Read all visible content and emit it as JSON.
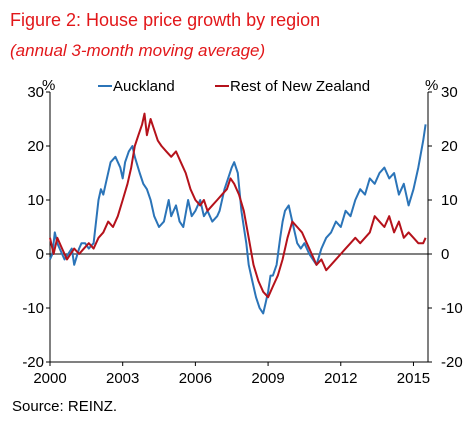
{
  "title": "Figure 2: House price growth by region",
  "subtitle": "(annual 3-month moving average)",
  "source": "Source: REINZ.",
  "chart_data": {
    "type": "line",
    "xlim": [
      2000,
      2015.6
    ],
    "ylim": [
      -20,
      30
    ],
    "x_ticks": [
      "2000",
      "2003",
      "2006",
      "2009",
      "2012",
      "2015"
    ],
    "y_ticks": [
      "30",
      "20",
      "10",
      "0",
      "-10",
      "-20"
    ],
    "y_unit_left": "%",
    "y_unit_right": "%",
    "legend_position": "top",
    "grid": false,
    "series": [
      {
        "name": "Auckland",
        "color": "#2b74b8",
        "x": [
          2000.0,
          2000.1,
          2000.2,
          2000.3,
          2000.4,
          2000.5,
          2000.6,
          2000.75,
          2000.9,
          2001.0,
          2001.2,
          2001.3,
          2001.45,
          2001.6,
          2001.8,
          2002.0,
          2002.1,
          2002.2,
          2002.3,
          2002.5,
          2002.7,
          2002.9,
          2003.0,
          2003.1,
          2003.25,
          2003.4,
          2003.5,
          2003.7,
          2003.85,
          2004.0,
          2004.15,
          2004.3,
          2004.5,
          2004.7,
          2004.9,
          2005.0,
          2005.2,
          2005.35,
          2005.5,
          2005.7,
          2005.85,
          2006.0,
          2006.2,
          2006.35,
          2006.5,
          2006.7,
          2006.9,
          2007.0,
          2007.2,
          2007.35,
          2007.5,
          2007.6,
          2007.75,
          2007.9,
          2008.0,
          2008.1,
          2008.2,
          2008.35,
          2008.5,
          2008.65,
          2008.8,
          2008.9,
          2009.0,
          2009.1,
          2009.2,
          2009.35,
          2009.5,
          2009.6,
          2009.7,
          2009.85,
          2010.0,
          2010.2,
          2010.35,
          2010.5,
          2010.7,
          2010.85,
          2011.0,
          2011.2,
          2011.4,
          2011.6,
          2011.8,
          2012.0,
          2012.2,
          2012.4,
          2012.6,
          2012.8,
          2013.0,
          2013.2,
          2013.4,
          2013.6,
          2013.8,
          2014.0,
          2014.2,
          2014.4,
          2014.6,
          2014.8,
          2015.0,
          2015.2,
          2015.4,
          2015.5
        ],
        "y": [
          -1,
          0,
          4,
          2,
          1,
          0,
          -1,
          0,
          1,
          -2,
          1,
          2,
          2,
          1,
          2,
          10,
          12,
          11,
          13,
          17,
          18,
          16,
          14,
          17,
          19,
          20,
          18,
          15,
          13,
          12,
          10,
          7,
          5,
          6,
          10,
          7,
          9,
          6,
          5,
          10,
          7,
          8,
          10,
          7,
          8,
          6,
          7,
          8,
          12,
          14,
          16,
          17,
          15,
          8,
          5,
          2,
          -2,
          -5,
          -8,
          -10,
          -11,
          -9,
          -7,
          -4,
          -4,
          -2,
          3,
          6,
          8,
          9,
          6,
          2,
          1,
          2,
          0,
          -1,
          -2,
          1,
          3,
          4,
          6,
          5,
          8,
          7,
          10,
          12,
          11,
          14,
          13,
          15,
          16,
          14,
          15,
          11,
          13,
          9,
          12,
          16,
          21,
          24
        ]
      },
      {
        "name": "Rest of New Zealand",
        "color": "#b5121b",
        "x": [
          2000.0,
          2000.15,
          2000.3,
          2000.5,
          2000.7,
          2000.85,
          2001.0,
          2001.2,
          2001.4,
          2001.6,
          2001.8,
          2002.0,
          2002.2,
          2002.4,
          2002.6,
          2002.8,
          2003.0,
          2003.2,
          2003.35,
          2003.5,
          2003.65,
          2003.8,
          2003.9,
          2004.0,
          2004.15,
          2004.3,
          2004.45,
          2004.6,
          2004.8,
          2005.0,
          2005.2,
          2005.4,
          2005.6,
          2005.8,
          2006.0,
          2006.2,
          2006.35,
          2006.5,
          2006.7,
          2006.9,
          2007.1,
          2007.3,
          2007.45,
          2007.6,
          2007.8,
          2008.0,
          2008.2,
          2008.4,
          2008.6,
          2008.8,
          2009.0,
          2009.2,
          2009.4,
          2009.6,
          2009.8,
          2010.0,
          2010.2,
          2010.4,
          2010.6,
          2010.8,
          2011.0,
          2011.2,
          2011.4,
          2011.6,
          2011.8,
          2012.0,
          2012.2,
          2012.4,
          2012.6,
          2012.8,
          2013.0,
          2013.2,
          2013.4,
          2013.6,
          2013.8,
          2014.0,
          2014.2,
          2014.4,
          2014.6,
          2014.8,
          2015.0,
          2015.2,
          2015.4,
          2015.5
        ],
        "y": [
          3,
          0,
          3,
          1,
          -1,
          0,
          1,
          0,
          1,
          2,
          1,
          3,
          4,
          6,
          5,
          7,
          10,
          13,
          16,
          20,
          22,
          24,
          26,
          22,
          25,
          23,
          21,
          20,
          19,
          18,
          19,
          17,
          15,
          12,
          10,
          9,
          10,
          8,
          9,
          10,
          11,
          12,
          14,
          13,
          11,
          8,
          3,
          -2,
          -5,
          -7,
          -8,
          -6,
          -4,
          -1,
          3,
          6,
          5,
          4,
          2,
          0,
          -2,
          -1,
          -3,
          -2,
          -1,
          0,
          1,
          2,
          3,
          2,
          3,
          4,
          7,
          6,
          5,
          7,
          4,
          6,
          3,
          4,
          3,
          2,
          2,
          3
        ]
      }
    ]
  }
}
